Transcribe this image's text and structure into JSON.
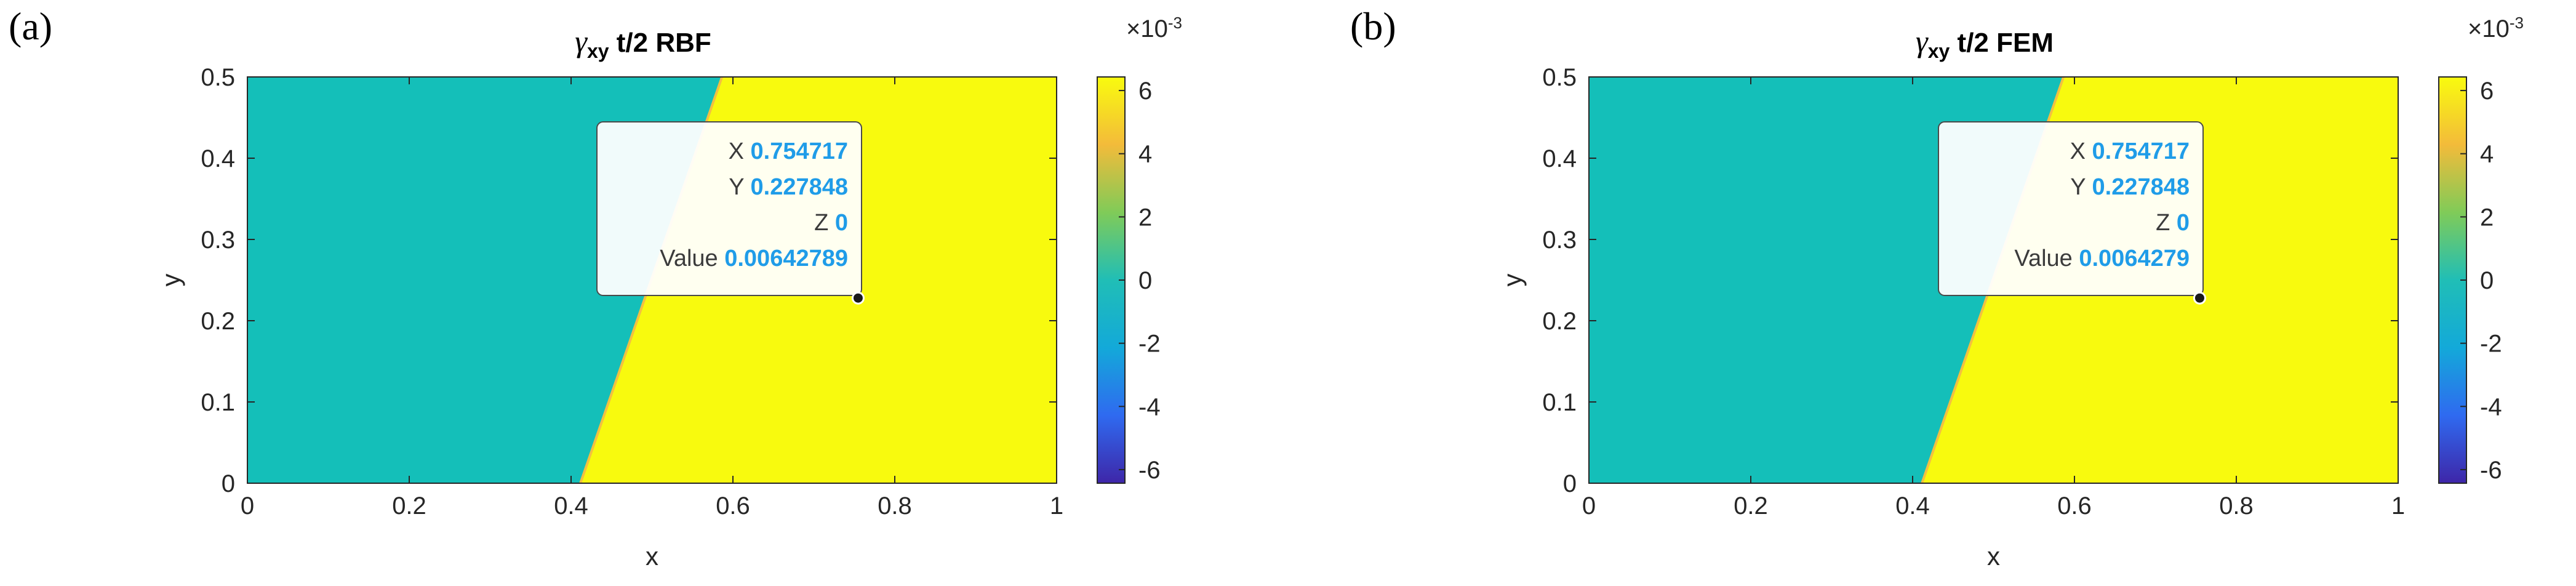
{
  "chart_data": [
    {
      "type": "heatmap",
      "panel_label": "(a)",
      "title_symbol": "γ",
      "title_sub": "xy",
      "title_rest": "t/2 RBF",
      "xlabel": "x",
      "ylabel": "y",
      "xlim": [
        0,
        1
      ],
      "ylim": [
        0,
        0.5
      ],
      "xticks": [
        "0",
        "0.2",
        "0.4",
        "0.6",
        "0.8",
        "1"
      ],
      "yticks": [
        "0",
        "0.1",
        "0.2",
        "0.3",
        "0.4",
        "0.5"
      ],
      "regions": {
        "boundary_x_at_y0": 0.41,
        "boundary_x_at_y05": 0.585,
        "left_value": 0,
        "right_value": 0.00642789
      },
      "colorbar": {
        "exponent_label": "×10",
        "exponent": "-3",
        "ticks": [
          "-6",
          "-4",
          "-2",
          "0",
          "2",
          "4",
          "6"
        ],
        "range": [
          -6.43,
          6.43
        ]
      },
      "datatip": {
        "X_label": "X",
        "X": "0.754717",
        "Y_label": "Y",
        "Y": "0.227848",
        "Z_label": "Z",
        "Z": "0",
        "Value_label": "Value",
        "Value": "0.00642789"
      }
    },
    {
      "type": "heatmap",
      "panel_label": "(b)",
      "title_symbol": "γ",
      "title_sub": "xy",
      "title_rest": "t/2 FEM",
      "xlabel": "x",
      "ylabel": "y",
      "xlim": [
        0,
        1
      ],
      "ylim": [
        0,
        0.5
      ],
      "xticks": [
        "0",
        "0.2",
        "0.4",
        "0.6",
        "0.8",
        "1"
      ],
      "yticks": [
        "0",
        "0.1",
        "0.2",
        "0.3",
        "0.4",
        "0.5"
      ],
      "regions": {
        "boundary_x_at_y0": 0.41,
        "boundary_x_at_y05": 0.585,
        "left_value": 0,
        "right_value": 0.0064279
      },
      "colorbar": {
        "exponent_label": "×10",
        "exponent": "-3",
        "ticks": [
          "-6",
          "-4",
          "-2",
          "0",
          "2",
          "4",
          "6"
        ],
        "range": [
          -6.43,
          6.43
        ]
      },
      "datatip": {
        "X_label": "X",
        "X": "0.754717",
        "Y_label": "Y",
        "Y": "0.227848",
        "Z_label": "Z",
        "Z": "0",
        "Value_label": "Value",
        "Value": "0.0064279"
      }
    }
  ],
  "colors": {
    "low_region": "#14bfb9",
    "high_region": "#f8fa0e",
    "colormap": [
      "#3e26a8",
      "#2f6af0",
      "#13a9d9",
      "#20beb6",
      "#80cb58",
      "#f3bb3a",
      "#f9fb0e"
    ],
    "datatip_value": "#1f9ce8",
    "axis": "#262626"
  }
}
